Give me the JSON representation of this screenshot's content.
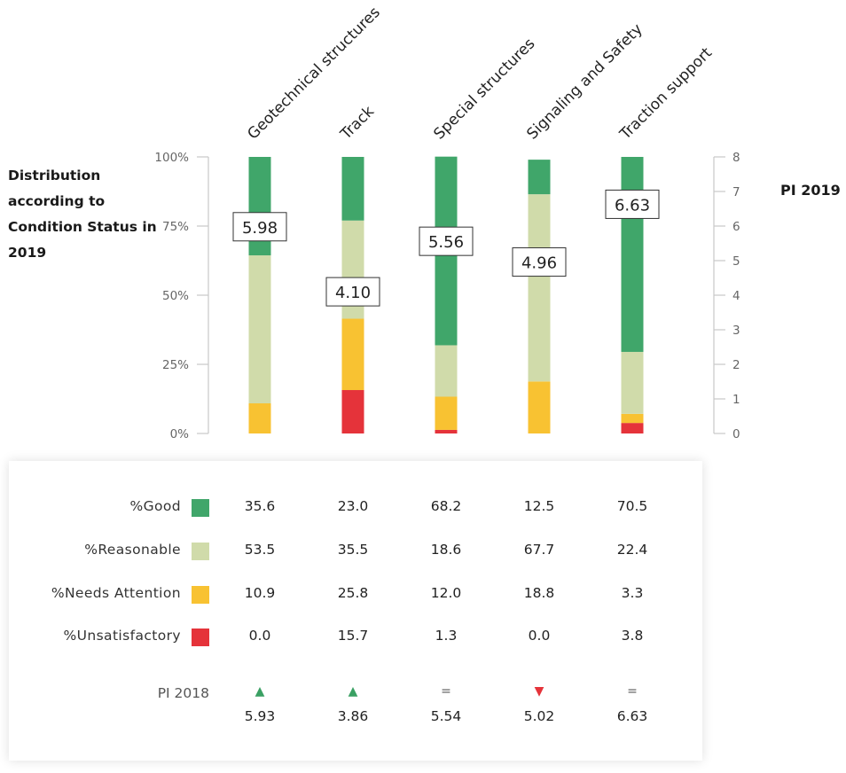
{
  "chart_data": {
    "type": "bar",
    "stacked": true,
    "categories": [
      "Geotechnical structures",
      "Track",
      "Special structures",
      "Signaling and Safety",
      "Traction support"
    ],
    "series": [
      {
        "name": "%Good",
        "color": "#40a66a",
        "values": [
          35.6,
          23.0,
          68.2,
          12.5,
          70.5
        ]
      },
      {
        "name": "%Reasonable",
        "color": "#d0dbaa",
        "values": [
          53.5,
          35.5,
          18.6,
          67.7,
          22.4
        ]
      },
      {
        "name": "%Needs Attention",
        "color": "#f8c232",
        "values": [
          10.9,
          25.8,
          12.0,
          18.8,
          3.3
        ]
      },
      {
        "name": "%Unsatisfactory",
        "color": "#e5333a",
        "values": [
          0.0,
          15.7,
          1.3,
          0.0,
          3.8
        ]
      }
    ],
    "pi_2019": [
      5.98,
      4.1,
      5.56,
      4.96,
      6.63
    ],
    "left_axis": {
      "title": "Distribution according to Condition Status in 2019",
      "ticks": [
        "0%",
        "25%",
        "50%",
        "75%",
        "100%"
      ],
      "ylim": [
        0,
        100
      ]
    },
    "right_axis": {
      "title": "PI 2019",
      "ticks": [
        "0",
        "1",
        "2",
        "3",
        "4",
        "5",
        "6",
        "7",
        "8"
      ],
      "ylim": [
        0,
        8
      ]
    }
  },
  "table": {
    "rows": [
      {
        "label": "%Good",
        "values": [
          "35.6",
          "23.0",
          "68.2",
          "12.5",
          "70.5"
        ]
      },
      {
        "label": "%Reasonable",
        "values": [
          "53.5",
          "35.5",
          "18.6",
          "67.7",
          "22.4"
        ]
      },
      {
        "label": "%Needs Attention",
        "values": [
          "10.9",
          "25.8",
          "12.0",
          "18.8",
          "3.3"
        ]
      },
      {
        "label": "%Unsatisfactory",
        "values": [
          "0.0",
          "15.7",
          "1.3",
          "0.0",
          "3.8"
        ]
      }
    ],
    "pi_2018": {
      "label": "PI 2018",
      "values": [
        "5.93",
        "3.86",
        "5.54",
        "5.02",
        "6.63"
      ],
      "trends": [
        "▲",
        "▲",
        "=",
        "▼",
        "="
      ],
      "trend_colors": [
        "#3aa063",
        "#3aa063",
        "#555555",
        "#e5333a",
        "#555555"
      ]
    }
  }
}
